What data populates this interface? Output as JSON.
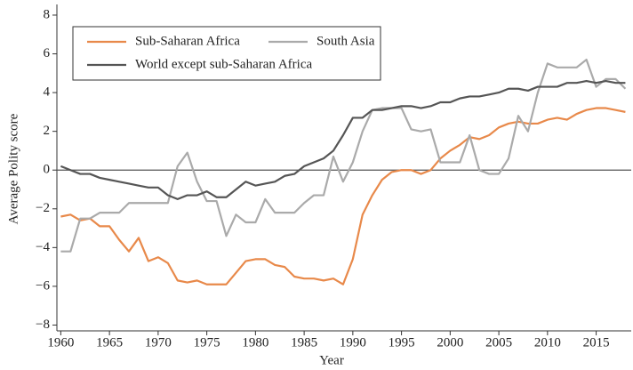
{
  "chart_data": {
    "type": "line",
    "x_label": "Year",
    "y_label": "Average Polity score",
    "x": [
      1960,
      1961,
      1962,
      1963,
      1964,
      1965,
      1966,
      1967,
      1968,
      1969,
      1970,
      1971,
      1972,
      1973,
      1974,
      1975,
      1976,
      1977,
      1978,
      1979,
      1980,
      1981,
      1982,
      1983,
      1984,
      1985,
      1986,
      1987,
      1988,
      1989,
      1990,
      1991,
      1992,
      1993,
      1994,
      1995,
      1996,
      1997,
      1998,
      1999,
      2000,
      2001,
      2002,
      2003,
      2004,
      2005,
      2006,
      2007,
      2008,
      2009,
      2010,
      2011,
      2012,
      2013,
      2014,
      2015,
      2016,
      2017,
      2018
    ],
    "series": [
      {
        "name": "Sub-Saharan Africa",
        "color": "#e8894a",
        "values": [
          -2.4,
          -2.3,
          -2.6,
          -2.5,
          -2.9,
          -2.9,
          -3.6,
          -4.2,
          -3.5,
          -4.7,
          -4.5,
          -4.8,
          -5.7,
          -5.8,
          -5.7,
          -5.9,
          -5.9,
          -5.9,
          -5.3,
          -4.7,
          -4.6,
          -4.6,
          -4.9,
          -5.0,
          -5.5,
          -5.6,
          -5.6,
          -5.7,
          -5.6,
          -5.9,
          -4.6,
          -2.3,
          -1.3,
          -0.5,
          -0.1,
          0.0,
          0.0,
          -0.2,
          0.0,
          0.6,
          1.0,
          1.3,
          1.7,
          1.6,
          1.8,
          2.2,
          2.4,
          2.5,
          2.4,
          2.4,
          2.6,
          2.7,
          2.6,
          2.9,
          3.1,
          3.2,
          3.2,
          3.1,
          3.0
        ]
      },
      {
        "name": "South Asia",
        "color": "#aaaaaa",
        "values": [
          -4.2,
          -4.2,
          -2.5,
          -2.5,
          -2.2,
          -2.2,
          -2.2,
          -1.7,
          -1.7,
          -1.7,
          -1.7,
          -1.7,
          0.2,
          0.9,
          -0.6,
          -1.6,
          -1.6,
          -3.4,
          -2.3,
          -2.7,
          -2.7,
          -1.5,
          -2.2,
          -2.2,
          -2.2,
          -1.7,
          -1.3,
          -1.3,
          0.7,
          -0.6,
          0.4,
          2.0,
          3.1,
          3.2,
          3.2,
          3.2,
          2.1,
          2.0,
          2.1,
          0.4,
          0.4,
          0.4,
          1.8,
          0.0,
          -0.2,
          -0.2,
          0.6,
          2.8,
          2.0,
          4.0,
          5.5,
          5.3,
          5.3,
          5.3,
          5.7,
          4.3,
          4.7,
          4.7,
          4.2
        ]
      },
      {
        "name": "World except sub-Saharan Africa",
        "color": "#555555",
        "values": [
          0.2,
          0.0,
          -0.2,
          -0.2,
          -0.4,
          -0.5,
          -0.6,
          -0.7,
          -0.8,
          -0.9,
          -0.9,
          -1.3,
          -1.5,
          -1.3,
          -1.3,
          -1.1,
          -1.4,
          -1.4,
          -1.0,
          -0.6,
          -0.8,
          -0.7,
          -0.6,
          -0.3,
          -0.2,
          0.2,
          0.4,
          0.6,
          1.0,
          1.8,
          2.7,
          2.7,
          3.1,
          3.1,
          3.2,
          3.3,
          3.3,
          3.2,
          3.3,
          3.5,
          3.5,
          3.7,
          3.8,
          3.8,
          3.9,
          4.0,
          4.2,
          4.2,
          4.1,
          4.3,
          4.3,
          4.3,
          4.5,
          4.5,
          4.6,
          4.5,
          4.6,
          4.5,
          4.5
        ]
      }
    ],
    "xlim": [
      1959.6,
      2018.6
    ],
    "xticks": [
      1960,
      1965,
      1970,
      1975,
      1980,
      1985,
      1990,
      1995,
      2000,
      2005,
      2010,
      2015
    ],
    "ylim": [
      -8.3,
      8.55
    ],
    "yticks": [
      {
        "value": -8,
        "label": "−8"
      },
      {
        "value": -6,
        "label": "−6"
      },
      {
        "value": -4,
        "label": "−4"
      },
      {
        "value": -2,
        "label": "−2"
      },
      0,
      2,
      4,
      6,
      8
    ],
    "reference_line": 0,
    "grid": false
  }
}
